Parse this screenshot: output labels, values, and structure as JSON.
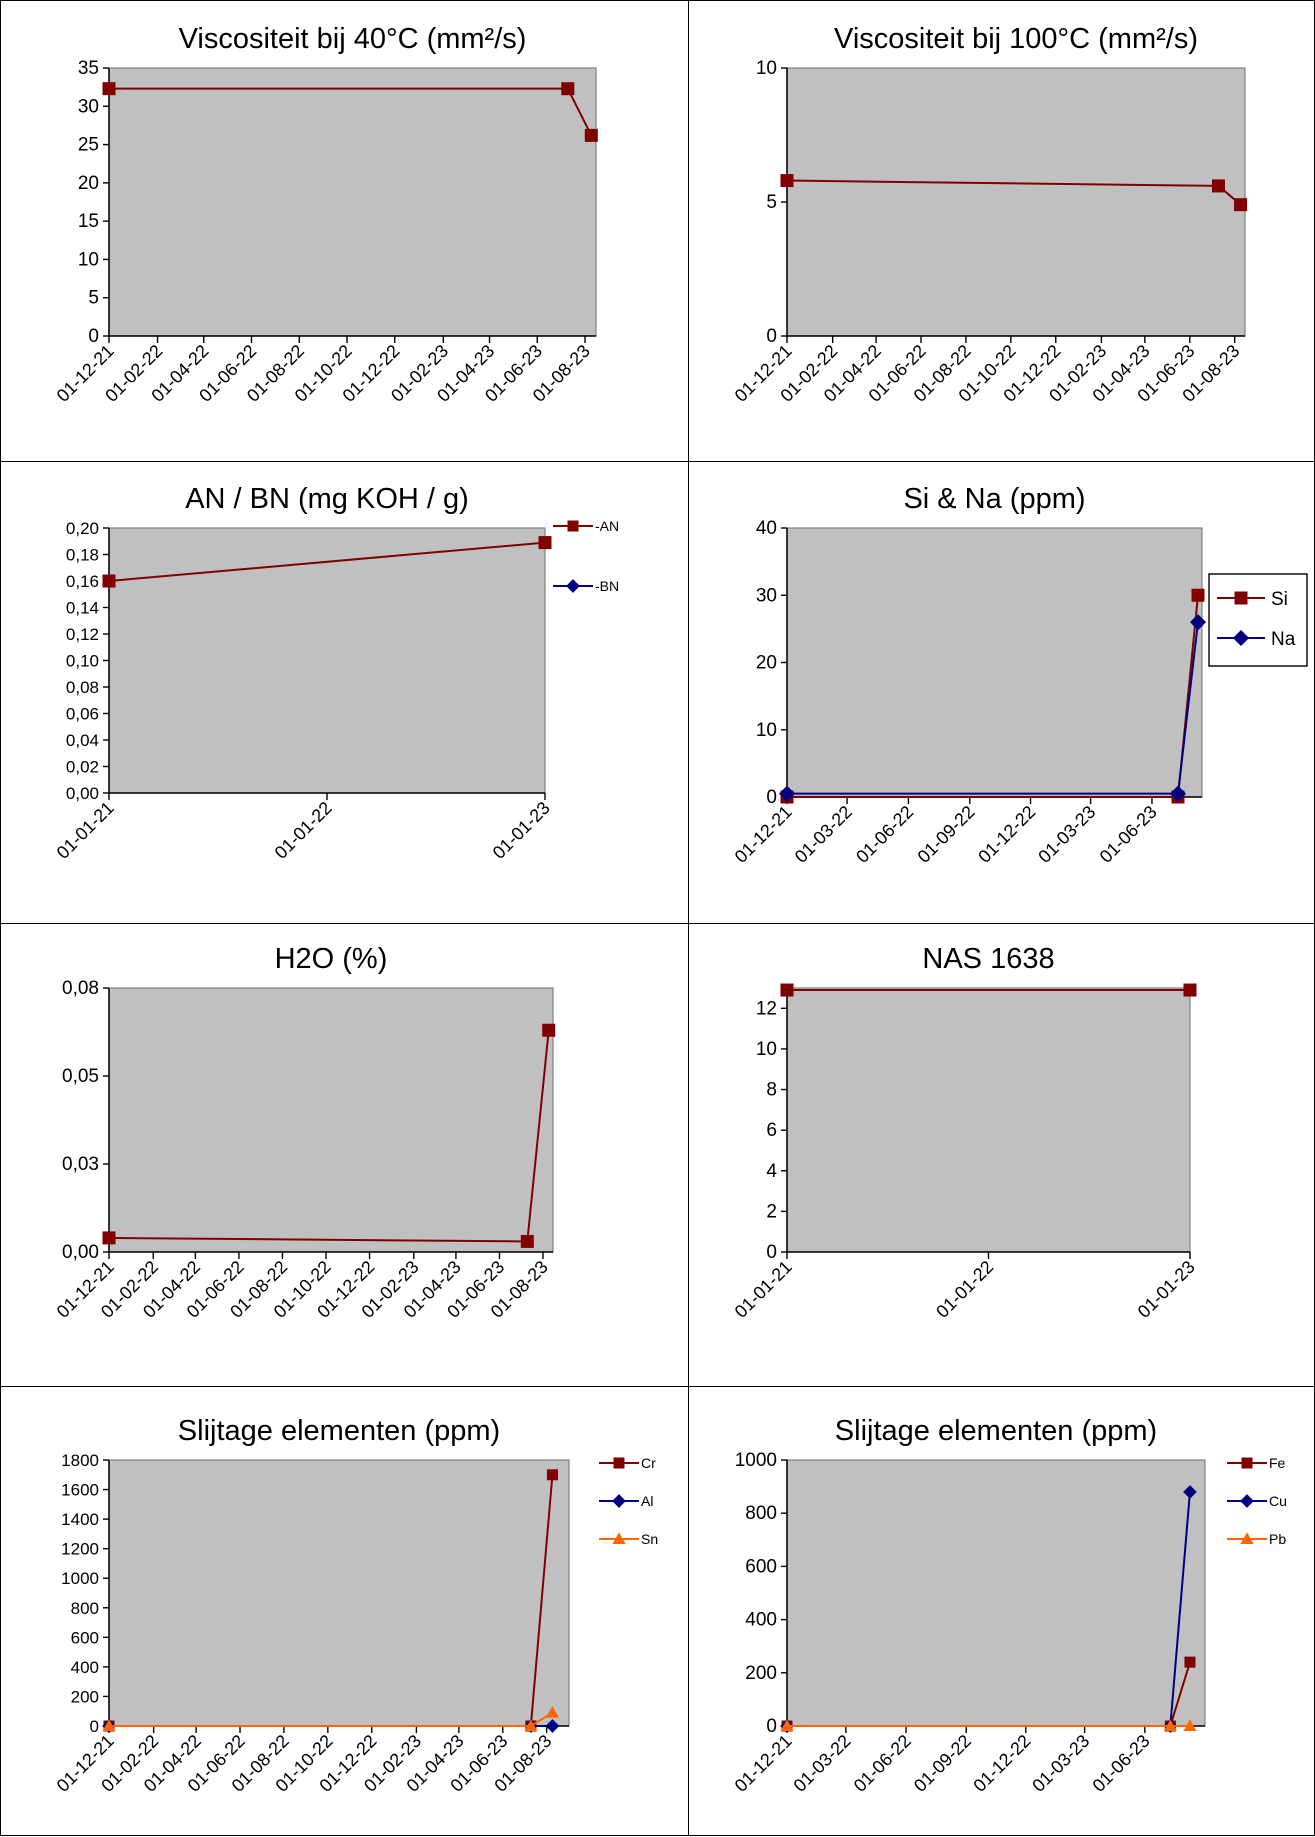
{
  "colors": {
    "plot_bg": "#c0c0c0",
    "dark_red": "#800000",
    "navy": "#000080",
    "orange": "#ff6600"
  },
  "chart_data": [
    {
      "type": "line",
      "title": "Viscositeit bij 40°C (mm²/s)",
      "xlabel": "",
      "ylabel": "",
      "x_ticks": [
        "01-12-21",
        "01-02-22",
        "01-04-22",
        "01-06-22",
        "01-08-22",
        "01-10-22",
        "01-12-22",
        "01-02-23",
        "01-04-23",
        "01-06-23",
        "01-08-23"
      ],
      "y_ticks": [
        "0",
        "5",
        "10",
        "15",
        "20",
        "25",
        "30",
        "35"
      ],
      "ylim": [
        0,
        35
      ],
      "legend": "none",
      "series": [
        {
          "color": "#800000",
          "marker": "square",
          "x": [
            "2021-12-01",
            "2023-07-10",
            "2023-08-09"
          ],
          "y": [
            32.3,
            32.3,
            26.2
          ]
        }
      ]
    },
    {
      "type": "line",
      "title": "Viscositeit bij 100°C (mm²/s)",
      "xlabel": "",
      "ylabel": "",
      "x_ticks": [
        "01-12-21",
        "01-02-22",
        "01-04-22",
        "01-06-22",
        "01-08-22",
        "01-10-22",
        "01-12-22",
        "01-02-23",
        "01-04-23",
        "01-06-23",
        "01-08-23"
      ],
      "y_ticks": [
        "0",
        "5",
        "10"
      ],
      "ylim": [
        0,
        10
      ],
      "legend": "none",
      "series": [
        {
          "color": "#800000",
          "marker": "square",
          "x": [
            "2021-12-01",
            "2023-07-10",
            "2023-08-09"
          ],
          "y": [
            5.8,
            5.6,
            4.9
          ]
        }
      ]
    },
    {
      "type": "line",
      "title": "AN / BN (mg KOH / g)",
      "xlabel": "",
      "ylabel": "",
      "x_ticks": [
        "01-01-21",
        "01-01-22",
        "01-01-23"
      ],
      "y_ticks": [
        "0,00",
        "0,02",
        "0,04",
        "0,06",
        "0,08",
        "0,10",
        "0,12",
        "0,14",
        "0,16",
        "0,18",
        "0,20"
      ],
      "ylim": [
        0,
        0.2
      ],
      "legend": "right",
      "series": [
        {
          "name": "-AN",
          "color": "#800000",
          "marker": "square",
          "x": [
            "2021-01-01",
            "2023-01-01"
          ],
          "y": [
            0.16,
            0.189
          ]
        },
        {
          "name": "-BN",
          "color": "#000080",
          "marker": "diamond",
          "x": [],
          "y": []
        }
      ]
    },
    {
      "type": "line",
      "title": "Si & Na (ppm)",
      "xlabel": "",
      "ylabel": "",
      "x_ticks": [
        "01-12-21",
        "01-03-22",
        "01-06-22",
        "01-09-22",
        "01-12-22",
        "01-03-23",
        "01-06-23"
      ],
      "y_ticks": [
        "0",
        "10",
        "20",
        "30",
        "40"
      ],
      "ylim": [
        0,
        40
      ],
      "legend": "right-boxed",
      "series": [
        {
          "name": "Si",
          "color": "#800000",
          "marker": "square",
          "x": [
            "2021-12-01",
            "2023-07-10",
            "2023-08-09"
          ],
          "y": [
            0,
            0,
            30
          ]
        },
        {
          "name": "Na",
          "color": "#000080",
          "marker": "diamond",
          "x": [
            "2021-12-01",
            "2023-07-10",
            "2023-08-09"
          ],
          "y": [
            0.5,
            0.5,
            26
          ]
        }
      ]
    },
    {
      "type": "line",
      "title": "H2O (%)",
      "xlabel": "",
      "ylabel": "",
      "x_ticks": [
        "01-12-21",
        "01-02-22",
        "01-04-22",
        "01-06-22",
        "01-08-22",
        "01-10-22",
        "01-12-22",
        "01-02-23",
        "01-04-23",
        "01-06-23",
        "01-08-23"
      ],
      "y_ticks": [
        "0,00",
        "0,03",
        "0,05",
        "0,08"
      ],
      "y_tick_values": [
        0,
        0.025,
        0.05,
        0.075
      ],
      "ylim": [
        0,
        0.075
      ],
      "legend": "none",
      "series": [
        {
          "color": "#800000",
          "marker": "square",
          "x": [
            "2021-12-01",
            "2023-07-10",
            "2023-08-09"
          ],
          "y": [
            0.004,
            0.003,
            0.063
          ]
        }
      ]
    },
    {
      "type": "line",
      "title": "NAS 1638",
      "xlabel": "",
      "ylabel": "",
      "x_ticks": [
        "01-01-21",
        "01-01-22",
        "01-01-23"
      ],
      "y_ticks": [
        "0",
        "2",
        "4",
        "6",
        "8",
        "10",
        "12"
      ],
      "ylim": [
        0,
        13
      ],
      "legend": "none",
      "series": [
        {
          "color": "#800000",
          "marker": "square",
          "x": [
            "2021-01-01",
            "2023-01-01"
          ],
          "y": [
            12.9,
            12.9
          ]
        }
      ]
    },
    {
      "type": "line",
      "title": "Slijtage elementen (ppm)",
      "xlabel": "",
      "ylabel": "",
      "x_ticks": [
        "01-12-21",
        "01-02-22",
        "01-04-22",
        "01-06-22",
        "01-08-22",
        "01-10-22",
        "01-12-22",
        "01-02-23",
        "01-04-23",
        "01-06-23",
        "01-08-23"
      ],
      "y_ticks": [
        "0",
        "200",
        "400",
        "600",
        "800",
        "1000",
        "1200",
        "1400",
        "1600",
        "1800"
      ],
      "ylim": [
        0,
        1800
      ],
      "legend": "right",
      "series": [
        {
          "name": "Cr",
          "color": "#800000",
          "marker": "square",
          "x": [
            "2021-12-01",
            "2023-07-10",
            "2023-08-09"
          ],
          "y": [
            0,
            0,
            1700
          ]
        },
        {
          "name": "Al",
          "color": "#000080",
          "marker": "diamond",
          "x": [
            "2021-12-01",
            "2023-07-10",
            "2023-08-09"
          ],
          "y": [
            0,
            0,
            0
          ]
        },
        {
          "name": "Sn",
          "color": "#ff6600",
          "marker": "triangle",
          "x": [
            "2021-12-01",
            "2023-07-10",
            "2023-08-09"
          ],
          "y": [
            0,
            0,
            90
          ]
        }
      ]
    },
    {
      "type": "line",
      "title": "Slijtage elementen (ppm)",
      "xlabel": "",
      "ylabel": "",
      "x_ticks": [
        "01-12-21",
        "01-03-22",
        "01-06-22",
        "01-09-22",
        "01-12-22",
        "01-03-23",
        "01-06-23"
      ],
      "y_ticks": [
        "0",
        "200",
        "400",
        "600",
        "800",
        "1000"
      ],
      "ylim": [
        0,
        1000
      ],
      "legend": "right",
      "series": [
        {
          "name": "Fe",
          "color": "#800000",
          "marker": "square",
          "x": [
            "2021-12-01",
            "2023-07-10",
            "2023-08-09"
          ],
          "y": [
            0,
            0,
            240
          ]
        },
        {
          "name": "Cu",
          "color": "#000080",
          "marker": "diamond",
          "x": [
            "2021-12-01",
            "2023-07-10",
            "2023-08-09"
          ],
          "y": [
            0,
            0,
            880
          ]
        },
        {
          "name": "Pb",
          "color": "#ff6600",
          "marker": "triangle",
          "x": [
            "2021-12-01",
            "2023-07-10",
            "2023-08-09"
          ],
          "y": [
            0,
            0,
            0
          ]
        }
      ]
    }
  ]
}
